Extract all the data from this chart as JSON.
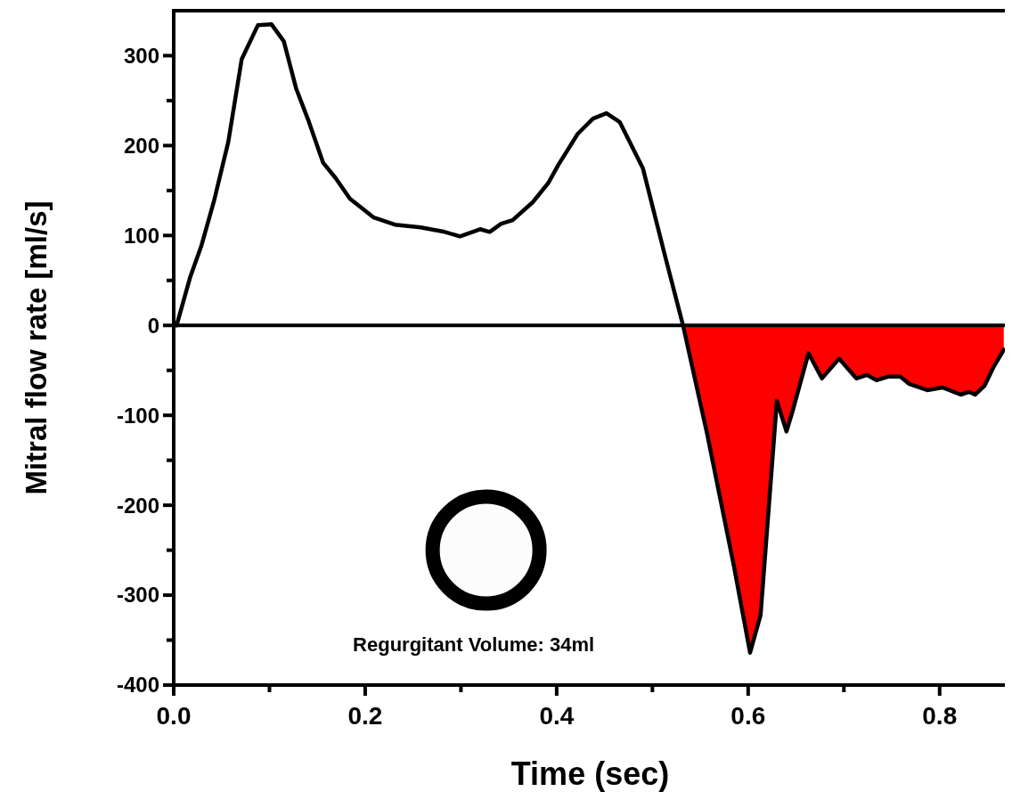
{
  "chart_data": {
    "type": "line",
    "xlabel": "Time (sec)",
    "ylabel": "Mitral flow rate [ml/s]",
    "xlim": [
      0,
      0.87
    ],
    "ylim": [
      -400,
      350
    ],
    "xticks": [
      {
        "value": 0,
        "label": "0.0"
      },
      {
        "value": 0.1,
        "label": null
      },
      {
        "value": 0.2,
        "label": "0.2"
      },
      {
        "value": 0.3,
        "label": null
      },
      {
        "value": 0.4,
        "label": "0.4"
      },
      {
        "value": 0.5,
        "label": null
      },
      {
        "value": 0.6,
        "label": "0.6"
      },
      {
        "value": 0.7,
        "label": null
      },
      {
        "value": 0.8,
        "label": "0.8"
      }
    ],
    "yticks": [
      -400,
      {
        "value": -350,
        "label": null
      },
      -300,
      {
        "value": -250,
        "label": null
      },
      -200,
      {
        "value": -150,
        "label": null
      },
      -100,
      {
        "value": -50,
        "label": null
      },
      0,
      {
        "value": 50,
        "label": null
      },
      100,
      {
        "value": 150,
        "label": null
      },
      200,
      {
        "value": 250,
        "label": null
      },
      300
    ],
    "ref_lines": [
      {
        "axis": "y",
        "value": 0,
        "color": "#000000"
      }
    ],
    "annotations": [
      "Regurgitant Volume: 34ml"
    ],
    "marker": "none",
    "line_style": "solid",
    "series": [
      {
        "type": "area",
        "color": "#ff0000",
        "x": [
          0.532,
          0.557,
          0.585,
          0.602,
          0.613,
          0.63,
          0.64,
          0.646,
          0.663,
          0.677,
          0.695,
          0.713,
          0.724,
          0.734,
          0.746,
          0.759,
          0.768,
          0.787,
          0.803,
          0.822,
          0.831,
          0.837,
          0.847,
          0.856,
          0.867
        ],
        "values": [
          0,
          -120,
          -267,
          -364,
          -322,
          -84,
          -118,
          -97,
          -31,
          -59,
          -37,
          -59,
          -55,
          -61,
          -57,
          -57,
          -65,
          -72,
          -69,
          -77,
          -74,
          -77,
          -67,
          -47,
          -27
        ]
      },
      {
        "color": "#000000",
        "x": [
          0.003,
          0.017,
          0.029,
          0.042,
          0.057,
          0.071,
          0.088,
          0.102,
          0.115,
          0.128,
          0.141,
          0.156,
          0.169,
          0.184,
          0.209,
          0.231,
          0.258,
          0.283,
          0.299,
          0.32,
          0.33,
          0.342,
          0.354,
          0.375,
          0.391,
          0.402,
          0.422,
          0.438,
          0.452,
          0.466,
          0.49,
          0.513,
          0.532,
          0.557,
          0.585,
          0.602,
          0.613,
          0.63,
          0.64,
          0.646,
          0.663,
          0.677,
          0.695,
          0.713,
          0.724,
          0.734,
          0.746,
          0.759,
          0.768,
          0.787,
          0.803,
          0.822,
          0.831,
          0.837,
          0.847,
          0.856,
          0.867
        ],
        "values": [
          0,
          53,
          89,
          138,
          204,
          296,
          334,
          335,
          316,
          263,
          227,
          181,
          164,
          141,
          120,
          112,
          109,
          104,
          99,
          107,
          104,
          113,
          117,
          137,
          158,
          179,
          213,
          230,
          236,
          226,
          175,
          78,
          0,
          -120,
          -267,
          -364,
          -322,
          -84,
          -118,
          -97,
          -31,
          -59,
          -37,
          -59,
          -55,
          -61,
          -57,
          -57,
          -65,
          -72,
          -69,
          -77,
          -74,
          -77,
          -67,
          -47,
          -27
        ]
      }
    ]
  }
}
